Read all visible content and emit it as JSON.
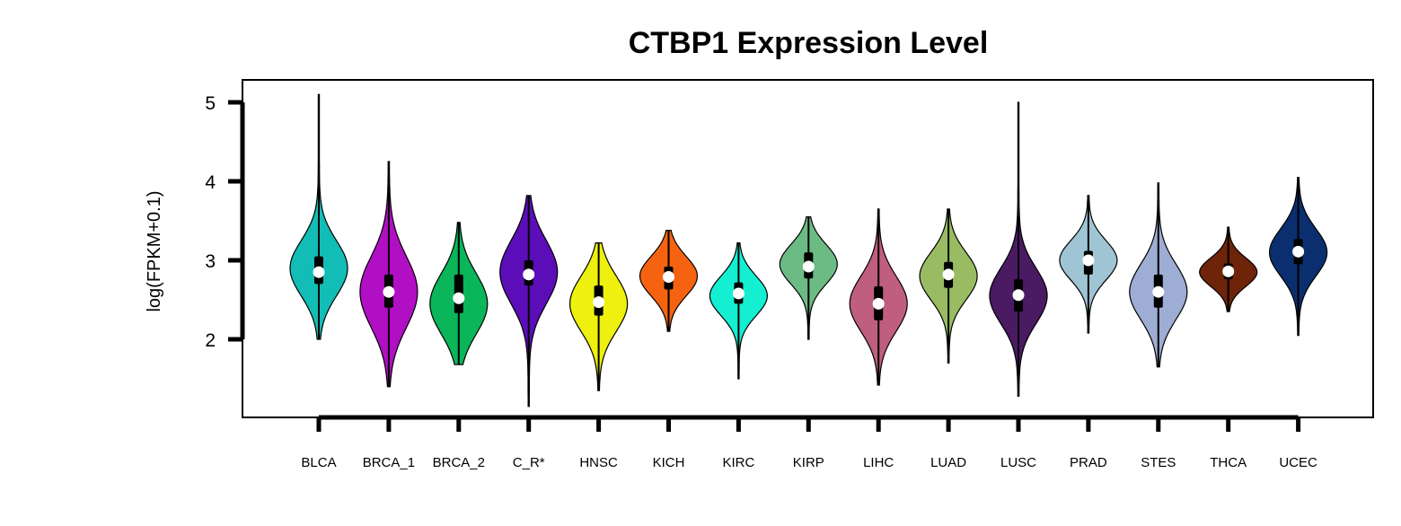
{
  "chart_data": {
    "type": "violin",
    "title": "CTBP1 Expression Level",
    "ylabel": "log(FPKM+0.1)",
    "xlabel": "",
    "ylim": [
      1.0,
      5.3
    ],
    "yticks": [
      "2",
      "3",
      "4",
      "5"
    ],
    "grid": false,
    "categories": [
      "BLCA",
      "BRCA_1",
      "BRCA_2",
      "C_R*",
      "HNSC",
      "KICH",
      "KIRC",
      "KIRP",
      "LIHC",
      "LUAD",
      "LUSC",
      "PRAD",
      "STES",
      "THCA",
      "UCEC"
    ],
    "series": [
      {
        "category": "BLCA",
        "color": "#12BDB5",
        "min": 2.0,
        "max": 5.1,
        "q1": 2.7,
        "median": 2.85,
        "q3": 3.05,
        "mode": 2.9,
        "spread": 0.35
      },
      {
        "category": "BRCA_1",
        "color": "#B10FC4",
        "min": 1.4,
        "max": 4.25,
        "q1": 2.4,
        "median": 2.6,
        "q3": 2.82,
        "mode": 2.6,
        "spread": 0.45
      },
      {
        "category": "BRCA_2",
        "color": "#0BB55A",
        "min": 1.68,
        "max": 3.48,
        "q1": 2.33,
        "median": 2.52,
        "q3": 2.82,
        "mode": 2.45,
        "spread": 0.38
      },
      {
        "category": "C_R*",
        "color": "#5B0EB8",
        "min": 1.15,
        "max": 3.82,
        "q1": 2.68,
        "median": 2.82,
        "q3": 3.0,
        "mode": 2.85,
        "spread": 0.4
      },
      {
        "category": "HNSC",
        "color": "#EEF00F",
        "min": 1.35,
        "max": 3.22,
        "q1": 2.3,
        "median": 2.47,
        "q3": 2.68,
        "mode": 2.45,
        "spread": 0.35
      },
      {
        "category": "KICH",
        "color": "#F56311",
        "min": 2.1,
        "max": 3.38,
        "q1": 2.63,
        "median": 2.79,
        "q3": 2.92,
        "mode": 2.8,
        "spread": 0.25
      },
      {
        "category": "KIRC",
        "color": "#14EFD2",
        "min": 1.5,
        "max": 3.22,
        "q1": 2.45,
        "median": 2.58,
        "q3": 2.72,
        "mode": 2.55,
        "spread": 0.25
      },
      {
        "category": "KIRP",
        "color": "#6DBB84",
        "min": 2.0,
        "max": 3.55,
        "q1": 2.77,
        "median": 2.92,
        "q3": 3.1,
        "mode": 2.95,
        "spread": 0.25
      },
      {
        "category": "LIHC",
        "color": "#BF5E7E",
        "min": 1.42,
        "max": 3.65,
        "q1": 2.24,
        "median": 2.45,
        "q3": 2.67,
        "mode": 2.45,
        "spread": 0.35
      },
      {
        "category": "LUAD",
        "color": "#99BC63",
        "min": 1.7,
        "max": 3.65,
        "q1": 2.65,
        "median": 2.82,
        "q3": 2.98,
        "mode": 2.8,
        "spread": 0.3
      },
      {
        "category": "LUSC",
        "color": "#4A1A62",
        "min": 1.28,
        "max": 5.0,
        "q1": 2.35,
        "median": 2.56,
        "q3": 2.76,
        "mode": 2.55,
        "spread": 0.35
      },
      {
        "category": "PRAD",
        "color": "#9FC4D4",
        "min": 2.08,
        "max": 3.82,
        "q1": 2.82,
        "median": 3.0,
        "q3": 3.12,
        "mode": 3.0,
        "spread": 0.25
      },
      {
        "category": "STES",
        "color": "#9EADD4",
        "min": 1.65,
        "max": 3.98,
        "q1": 2.4,
        "median": 2.6,
        "q3": 2.82,
        "mode": 2.6,
        "spread": 0.35
      },
      {
        "category": "THCA",
        "color": "#6E2409",
        "min": 2.35,
        "max": 3.42,
        "q1": 2.76,
        "median": 2.86,
        "q3": 2.96,
        "mode": 2.85,
        "spread": 0.18
      },
      {
        "category": "UCEC",
        "color": "#0B2F6E",
        "min": 2.05,
        "max": 4.05,
        "q1": 2.95,
        "median": 3.11,
        "q3": 3.27,
        "mode": 3.1,
        "spread": 0.3
      }
    ]
  }
}
